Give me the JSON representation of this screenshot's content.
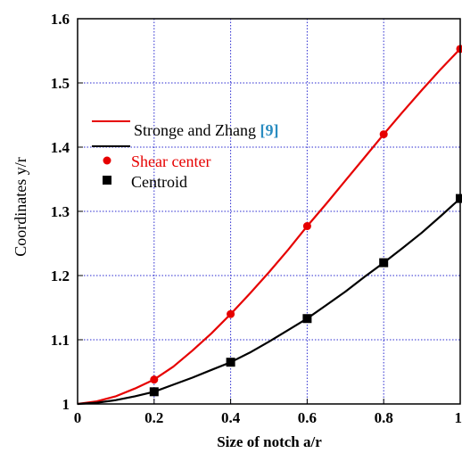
{
  "chart_data": {
    "type": "line",
    "title": "",
    "xlabel": "Size of notch a/r",
    "ylabel": "Coordinates y/r",
    "xlim": [
      0,
      1
    ],
    "ylim": [
      1,
      1.6
    ],
    "x_ticks": [
      "0",
      "0.2",
      "0.4",
      "0.6",
      "0.8",
      "1"
    ],
    "y_ticks": [
      "1",
      "1.1",
      "1.2",
      "1.3",
      "1.4",
      "1.5",
      "1.6"
    ],
    "grid": true,
    "legend_position": "upper-left",
    "legend": {
      "line_label_prefix": "Stronge and Zhang ",
      "line_label_ref": "[9]",
      "ref_color": "#2a8cc0",
      "line_colors": [
        "#e60000",
        "#000000"
      ]
    },
    "series": [
      {
        "name": "Shear center",
        "color": "#e60000",
        "marker": "circle",
        "curve_x": [
          0,
          0.05,
          0.1,
          0.15,
          0.2,
          0.25,
          0.3,
          0.35,
          0.4,
          0.45,
          0.5,
          0.55,
          0.6,
          0.65,
          0.7,
          0.75,
          0.8,
          0.85,
          0.9,
          0.95,
          1.0
        ],
        "curve_y": [
          1.0,
          1.004,
          1.012,
          1.024,
          1.038,
          1.058,
          1.083,
          1.11,
          1.14,
          1.172,
          1.205,
          1.24,
          1.277,
          1.312,
          1.348,
          1.384,
          1.42,
          1.455,
          1.489,
          1.522,
          1.553
        ],
        "points_x": [
          0.2,
          0.4,
          0.6,
          0.8,
          1.0
        ],
        "points_y": [
          1.038,
          1.14,
          1.277,
          1.42,
          1.553
        ]
      },
      {
        "name": "Centroid",
        "color": "#000000",
        "marker": "square",
        "curve_x": [
          0,
          0.05,
          0.1,
          0.15,
          0.2,
          0.25,
          0.3,
          0.35,
          0.4,
          0.45,
          0.5,
          0.55,
          0.6,
          0.65,
          0.7,
          0.75,
          0.8,
          0.85,
          0.9,
          0.95,
          1.0
        ],
        "curve_y": [
          1.0,
          1.002,
          1.006,
          1.012,
          1.019,
          1.03,
          1.041,
          1.053,
          1.065,
          1.08,
          1.097,
          1.115,
          1.133,
          1.154,
          1.175,
          1.198,
          1.22,
          1.243,
          1.267,
          1.293,
          1.32
        ],
        "points_x": [
          0.2,
          0.4,
          0.6,
          0.8,
          1.0
        ],
        "points_y": [
          1.019,
          1.065,
          1.133,
          1.22,
          1.32
        ]
      }
    ]
  }
}
